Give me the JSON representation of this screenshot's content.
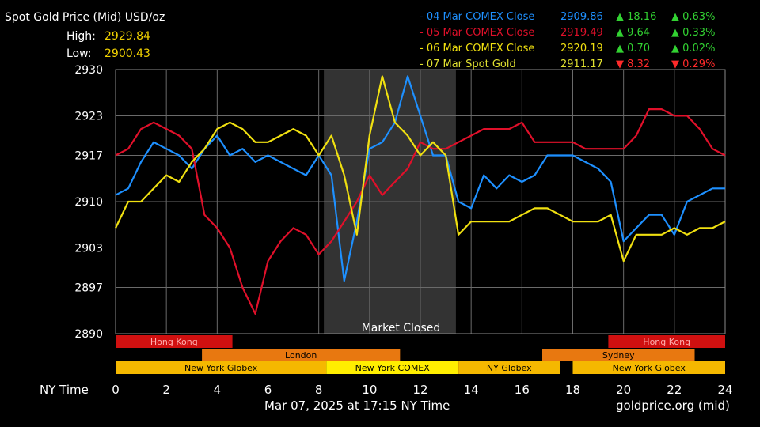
{
  "header": {
    "title": "Spot Gold Price (Mid) USD/oz",
    "high_label": "High:",
    "high_value": "2929.84",
    "low_label": "Low:",
    "low_value": "2900.43"
  },
  "legend": [
    {
      "name": "- 04 Mar COMEX Close",
      "price": "2909.86",
      "change": "▲ 18.16",
      "pct": "▲ 0.63%",
      "color": "#1e90ff",
      "dir": "up"
    },
    {
      "name": "- 05 Mar COMEX Close",
      "price": "2919.49",
      "change": "▲ 9.64",
      "pct": "▲ 0.33%",
      "color": "#e0102a",
      "dir": "up"
    },
    {
      "name": "- 06 Mar COMEX Close",
      "price": "2920.19",
      "change": "▲ 0.70",
      "pct": "▲ 0.02%",
      "color": "#f0e010",
      "dir": "up"
    },
    {
      "name": "- 07 Mar Spot Gold",
      "price": "2911.17",
      "change": "▼ 8.32",
      "pct": "▼ 0.29%",
      "color": "#e0e030",
      "dir": "down"
    }
  ],
  "footer": {
    "date": "Mar 07, 2025 at 17:15 NY Time",
    "source": "goldprice.org (mid)",
    "x_axis_label": "NY Time"
  },
  "market_closed_label": "Market Closed",
  "sessions": [
    {
      "row": 0,
      "start": 0,
      "end": 4.6,
      "label": "Hong Kong",
      "color": "#d01010",
      "text": "#ffb0b0"
    },
    {
      "row": 0,
      "start": 19.4,
      "end": 24,
      "label": "Hong Kong",
      "color": "#d01010",
      "text": "#ffb0b0"
    },
    {
      "row": 1,
      "start": 3.4,
      "end": 11.2,
      "label": "London",
      "color": "#e87810",
      "text": "#000000"
    },
    {
      "row": 1,
      "start": 16.8,
      "end": 22.8,
      "label": "Sydney",
      "color": "#e87810",
      "text": "#000000"
    },
    {
      "row": 2,
      "start": 0,
      "end": 8.3,
      "label": "New York Globex",
      "color": "#f5b800",
      "text": "#000000"
    },
    {
      "row": 2,
      "start": 8.3,
      "end": 13.5,
      "label": "New York COMEX",
      "color": "#ffee00",
      "text": "#000000"
    },
    {
      "row": 2,
      "start": 13.5,
      "end": 17.5,
      "label": "NY Globex",
      "color": "#f5b800",
      "text": "#000000"
    },
    {
      "row": 2,
      "start": 18.0,
      "end": 24,
      "label": "New York Globex",
      "color": "#f5b800",
      "text": "#000000"
    }
  ],
  "chart_data": {
    "type": "line",
    "title": "Spot Gold Price (Mid) USD/oz",
    "xlabel": "NY Time",
    "ylabel": "",
    "xlim": [
      0,
      24
    ],
    "ylim": [
      2890,
      2930
    ],
    "x_ticks": [
      0,
      2,
      4,
      6,
      8,
      10,
      12,
      14,
      16,
      18,
      20,
      22,
      24
    ],
    "y_ticks": [
      2890,
      2897,
      2903,
      2910,
      2917,
      2923,
      2930
    ],
    "grid": true,
    "shaded_region": {
      "start": 8.2,
      "end": 13.4,
      "label": "Market Closed"
    },
    "x": [
      0,
      0.5,
      1,
      1.5,
      2,
      2.5,
      3,
      3.5,
      4,
      4.5,
      5,
      5.5,
      6,
      6.5,
      7,
      7.5,
      8,
      8.5,
      9,
      9.5,
      10,
      10.5,
      11,
      11.5,
      12,
      12.5,
      13,
      13.5,
      14,
      14.5,
      15,
      15.5,
      16,
      16.5,
      17,
      17.5,
      18,
      18.5,
      19,
      19.5,
      20,
      20.5,
      21,
      21.5,
      22,
      22.5,
      23,
      23.5,
      24
    ],
    "series": [
      {
        "name": "04 Mar COMEX Close",
        "color": "#1e90ff",
        "values": [
          2911,
          2912,
          2916,
          2919,
          2918,
          2917,
          2915,
          2918,
          2920,
          2917,
          2918,
          2916,
          2917,
          2916,
          2915,
          2914,
          2917,
          2914,
          2898,
          2907,
          2918,
          2919,
          2922,
          2929,
          2923,
          2917,
          2917,
          2910,
          2909,
          2914,
          2912,
          2914,
          2913,
          2914,
          2917,
          2917,
          2917,
          2916,
          2915,
          2913,
          2904,
          2906,
          2908,
          2908,
          2905,
          2910,
          2911,
          2912,
          2912
        ]
      },
      {
        "name": "05 Mar COMEX Close",
        "color": "#e0102a",
        "values": [
          2917,
          2918,
          2921,
          2922,
          2921,
          2920,
          2918,
          2908,
          2906,
          2903,
          2897,
          2893,
          2901,
          2904,
          2906,
          2905,
          2902,
          2904,
          2907,
          2910,
          2914,
          2911,
          2913,
          2915,
          2919,
          2918,
          2918,
          2919,
          2920,
          2921,
          2921,
          2921,
          2922,
          2919,
          2919,
          2919,
          2919,
          2918,
          2918,
          2918,
          2918,
          2920,
          2924,
          2924,
          2923,
          2923,
          2921,
          2918,
          2917
        ]
      },
      {
        "name": "06 Mar COMEX Close",
        "color": "#f0e010",
        "values": [
          2906,
          2910,
          2910,
          2912,
          2914,
          2913,
          2916,
          2918,
          2921,
          2922,
          2921,
          2919,
          2919,
          2920,
          2921,
          2920,
          2917,
          2920,
          2914,
          2905,
          2920,
          2929,
          2922,
          2920,
          2917,
          2919,
          2917,
          2905,
          2907,
          2907,
          2907,
          2907,
          2908,
          2909,
          2909,
          2908,
          2907,
          2907,
          2907,
          2908,
          2901,
          2905,
          2905,
          2905,
          2906,
          2905,
          2906,
          2906,
          2907
        ]
      },
      {
        "name": "07 Mar Spot Gold",
        "color": "#e0e030",
        "values": [
          null,
          null,
          null,
          null,
          null,
          null,
          null,
          null,
          null,
          null,
          null,
          null,
          null,
          null,
          null,
          null,
          null,
          null,
          null,
          null,
          null,
          null,
          null,
          null,
          null,
          null,
          null,
          null,
          null,
          null,
          null,
          null,
          null,
          null,
          null,
          null,
          null,
          null,
          null,
          null,
          null,
          null,
          null,
          null,
          null,
          null,
          null,
          null,
          null
        ]
      }
    ]
  }
}
